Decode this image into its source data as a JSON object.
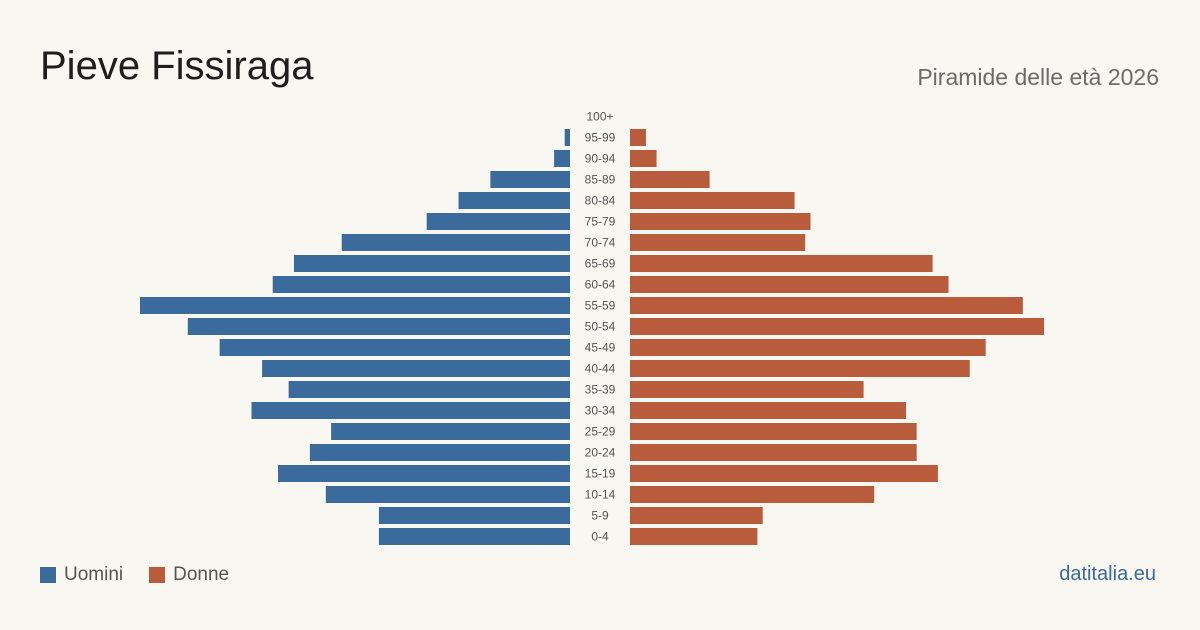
{
  "header": {
    "title": "Pieve Fissiraga",
    "subtitle": "Piramide delle età 2026"
  },
  "legend": {
    "men_label": "Uomini",
    "women_label": "Donne"
  },
  "brand": "datitalia.eu",
  "colors": {
    "men": "#3b6a9c",
    "women": "#b85c3c",
    "tick_label": "#555555"
  },
  "chart_data": {
    "type": "bar",
    "orientation": "horizontal-pyramid",
    "categories": [
      "0-4",
      "5-9",
      "10-14",
      "15-19",
      "20-24",
      "25-29",
      "30-34",
      "35-39",
      "40-44",
      "45-49",
      "50-54",
      "55-59",
      "60-64",
      "65-69",
      "70-74",
      "75-79",
      "80-84",
      "85-89",
      "90-94",
      "95-99",
      "100+"
    ],
    "series": [
      {
        "name": "Uomini",
        "side": "left",
        "values": [
          36,
          36,
          46,
          55,
          49,
          45,
          60,
          53,
          58,
          66,
          72,
          81,
          56,
          52,
          43,
          27,
          21,
          15,
          3,
          1,
          0
        ]
      },
      {
        "name": "Donne",
        "side": "right",
        "values": [
          24,
          25,
          46,
          58,
          54,
          54,
          52,
          44,
          64,
          67,
          78,
          74,
          60,
          57,
          33,
          34,
          31,
          15,
          5,
          3,
          0
        ]
      }
    ],
    "xlim": [
      0,
      81
    ],
    "legend_position": "bottom-left",
    "grid": false
  }
}
